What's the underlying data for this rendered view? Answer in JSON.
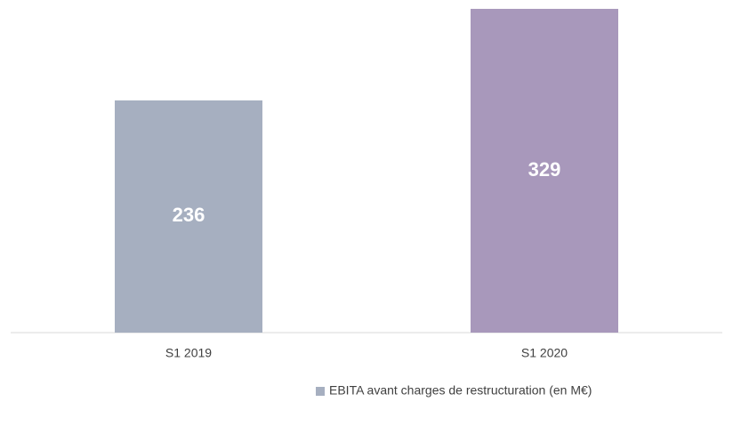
{
  "chart_data": {
    "type": "bar",
    "categories": [
      "S1 2019",
      "S1 2020"
    ],
    "series": [
      {
        "name": "EBITA avant charges de restructuration (en M€)",
        "color": "#a6afc0",
        "values": [
          236,
          329
        ],
        "bar_colors": [
          "#a6afc0",
          "#a898bb"
        ]
      }
    ],
    "ylim": [
      0,
      338
    ],
    "legend": "bottom"
  }
}
